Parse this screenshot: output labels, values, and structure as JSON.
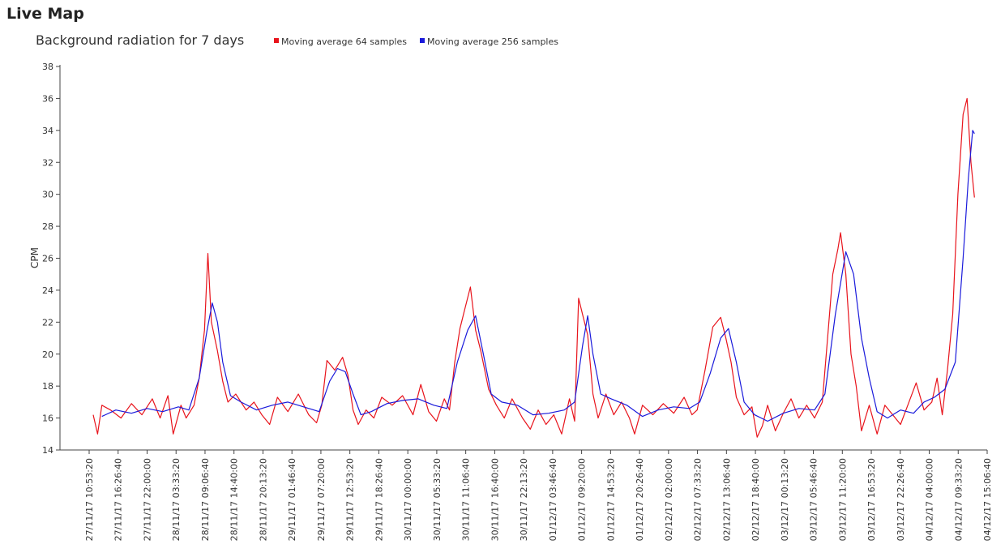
{
  "page": {
    "title": "Live Map"
  },
  "chart_data": {
    "type": "line",
    "title": "Background radiation for 7 days",
    "xlabel": "",
    "ylabel": "CPM",
    "ylim": [
      14,
      38
    ],
    "yticks": [
      14,
      16,
      18,
      20,
      22,
      24,
      26,
      28,
      30,
      32,
      34,
      36,
      38
    ],
    "legend_position": "top",
    "grid": false,
    "x_tick_labels": [
      "27/11/17 10:53:20",
      "27/11/17 16:26:40",
      "27/11/17 22:00:00",
      "28/11/17 03:33:20",
      "28/11/17 09:06:40",
      "28/11/17 14:40:00",
      "28/11/17 20:13:20",
      "29/11/17 01:46:40",
      "29/11/17 07:20:00",
      "29/11/17 12:53:20",
      "29/11/17 18:26:40",
      "30/11/17 00:00:00",
      "30/11/17 05:33:20",
      "30/11/17 11:06:40",
      "30/11/17 16:40:00",
      "30/11/17 22:13:20",
      "01/12/17 03:46:40",
      "01/12/17 09:20:00",
      "01/12/17 14:53:20",
      "01/12/17 20:26:40",
      "02/12/17 02:00:00",
      "02/12/17 07:33:20",
      "02/12/17 13:06:40",
      "02/12/17 18:40:00",
      "03/12/17 00:13:20",
      "03/12/17 05:46:40",
      "03/12/17 11:20:00",
      "03/12/17 16:53:20",
      "03/12/17 22:26:40",
      "04/12/17 04:00:00",
      "04/12/17 09:33:20",
      "04/12/17 15:06:40"
    ],
    "series": [
      {
        "name": "Moving average 64 samples",
        "color": "#e8141c",
        "points": [
          [
            "27/11/17 11:40",
            16.2
          ],
          [
            "27/11/17 12:30",
            15.0
          ],
          [
            "27/11/17 13:20",
            16.8
          ],
          [
            "27/11/17 15:00",
            16.5
          ],
          [
            "27/11/17 17:00",
            16.0
          ],
          [
            "27/11/17 19:00",
            16.9
          ],
          [
            "27/11/17 21:00",
            16.2
          ],
          [
            "27/11/17 23:00",
            17.2
          ],
          [
            "28/11/17 00:30",
            16.0
          ],
          [
            "28/11/17 02:00",
            17.4
          ],
          [
            "28/11/17 03:00",
            15.0
          ],
          [
            "28/11/17 04:30",
            16.8
          ],
          [
            "28/11/17 05:30",
            16.0
          ],
          [
            "28/11/17 07:00",
            16.8
          ],
          [
            "28/11/17 08:00",
            18.5
          ],
          [
            "28/11/17 09:00",
            21.5
          ],
          [
            "28/11/17 09:40",
            26.3
          ],
          [
            "28/11/17 10:20",
            22.0
          ],
          [
            "28/11/17 11:30",
            20.2
          ],
          [
            "28/11/17 12:30",
            18.3
          ],
          [
            "28/11/17 13:30",
            17.0
          ],
          [
            "28/11/17 15:00",
            17.5
          ],
          [
            "28/11/17 17:00",
            16.5
          ],
          [
            "28/11/17 18:30",
            17.0
          ],
          [
            "28/11/17 20:00",
            16.2
          ],
          [
            "28/11/17 21:30",
            15.6
          ],
          [
            "28/11/17 23:00",
            17.3
          ],
          [
            "29/11/17 01:00",
            16.4
          ],
          [
            "29/11/17 03:00",
            17.5
          ],
          [
            "29/11/17 05:00",
            16.2
          ],
          [
            "29/11/17 06:30",
            15.7
          ],
          [
            "29/11/17 07:30",
            16.8
          ],
          [
            "29/11/17 08:30",
            19.6
          ],
          [
            "29/11/17 10:00",
            19.0
          ],
          [
            "29/11/17 11:30",
            19.8
          ],
          [
            "29/11/17 12:30",
            18.7
          ],
          [
            "29/11/17 13:30",
            16.5
          ],
          [
            "29/11/17 14:30",
            15.6
          ],
          [
            "29/11/17 16:00",
            16.5
          ],
          [
            "29/11/17 17:30",
            16.0
          ],
          [
            "29/11/17 19:00",
            17.3
          ],
          [
            "29/11/17 21:00",
            16.8
          ],
          [
            "29/11/17 23:00",
            17.4
          ],
          [
            "30/11/17 01:00",
            16.2
          ],
          [
            "30/11/17 02:30",
            18.1
          ],
          [
            "30/11/17 04:00",
            16.4
          ],
          [
            "30/11/17 05:30",
            15.8
          ],
          [
            "30/11/17 07:00",
            17.2
          ],
          [
            "30/11/17 08:00",
            16.5
          ],
          [
            "30/11/17 09:00",
            19.5
          ],
          [
            "30/11/17 10:00",
            21.6
          ],
          [
            "30/11/17 11:00",
            22.9
          ],
          [
            "30/11/17 12:00",
            24.2
          ],
          [
            "30/11/17 13:00",
            21.5
          ],
          [
            "30/11/17 14:00",
            20.2
          ],
          [
            "30/11/17 15:30",
            17.8
          ],
          [
            "30/11/17 17:00",
            16.8
          ],
          [
            "30/11/17 18:30",
            16.0
          ],
          [
            "30/11/17 20:00",
            17.2
          ],
          [
            "30/11/17 22:00",
            16.0
          ],
          [
            "30/11/17 23:30",
            15.3
          ],
          [
            "01/12/17 01:00",
            16.5
          ],
          [
            "01/12/17 02:30",
            15.6
          ],
          [
            "01/12/17 04:00",
            16.2
          ],
          [
            "01/12/17 05:30",
            15.0
          ],
          [
            "01/12/17 07:00",
            17.2
          ],
          [
            "01/12/17 08:00",
            15.8
          ],
          [
            "01/12/17 08:45",
            23.5
          ],
          [
            "01/12/17 09:30",
            22.5
          ],
          [
            "01/12/17 10:30",
            21.2
          ],
          [
            "01/12/17 11:30",
            17.5
          ],
          [
            "01/12/17 12:30",
            16.0
          ],
          [
            "01/12/17 14:00",
            17.5
          ],
          [
            "01/12/17 15:30",
            16.2
          ],
          [
            "01/12/17 17:00",
            17.0
          ],
          [
            "01/12/17 18:30",
            16.0
          ],
          [
            "01/12/17 19:30",
            15.0
          ],
          [
            "01/12/17 21:00",
            16.8
          ],
          [
            "01/12/17 23:00",
            16.2
          ],
          [
            "02/12/17 01:00",
            16.9
          ],
          [
            "02/12/17 03:00",
            16.3
          ],
          [
            "02/12/17 05:00",
            17.3
          ],
          [
            "02/12/17 06:30",
            16.2
          ],
          [
            "02/12/17 07:30",
            16.5
          ],
          [
            "02/12/17 09:00",
            19.0
          ],
          [
            "02/12/17 10:30",
            21.7
          ],
          [
            "02/12/17 12:00",
            22.3
          ],
          [
            "02/12/17 13:00",
            21.0
          ],
          [
            "02/12/17 14:00",
            19.5
          ],
          [
            "02/12/17 15:00",
            17.3
          ],
          [
            "02/12/17 16:30",
            16.2
          ],
          [
            "02/12/17 18:00",
            16.7
          ],
          [
            "02/12/17 19:00",
            14.8
          ],
          [
            "02/12/17 20:00",
            15.5
          ],
          [
            "02/12/17 21:00",
            16.8
          ],
          [
            "02/12/17 22:30",
            15.2
          ],
          [
            "03/12/17 00:00",
            16.3
          ],
          [
            "03/12/17 01:30",
            17.2
          ],
          [
            "03/12/17 03:00",
            16.0
          ],
          [
            "03/12/17 04:30",
            16.8
          ],
          [
            "03/12/17 06:00",
            16.0
          ],
          [
            "03/12/17 07:30",
            17.0
          ],
          [
            "03/12/17 08:30",
            21.0
          ],
          [
            "03/12/17 09:30",
            25.0
          ],
          [
            "03/12/17 10:30",
            26.6
          ],
          [
            "03/12/17 11:00",
            27.6
          ],
          [
            "03/12/17 12:00",
            25.0
          ],
          [
            "03/12/17 13:00",
            20.0
          ],
          [
            "03/12/17 14:00",
            18.0
          ],
          [
            "03/12/17 15:00",
            15.2
          ],
          [
            "03/12/17 16:30",
            16.8
          ],
          [
            "03/12/17 18:00",
            15.0
          ],
          [
            "03/12/17 19:30",
            16.8
          ],
          [
            "03/12/17 21:00",
            16.2
          ],
          [
            "03/12/17 22:30",
            15.6
          ],
          [
            "04/12/17 00:00",
            16.9
          ],
          [
            "04/12/17 01:30",
            18.2
          ],
          [
            "04/12/17 03:00",
            16.5
          ],
          [
            "04/12/17 04:30",
            17.0
          ],
          [
            "04/12/17 05:30",
            18.5
          ],
          [
            "04/12/17 06:30",
            16.2
          ],
          [
            "04/12/17 07:30",
            19.0
          ],
          [
            "04/12/17 08:30",
            22.5
          ],
          [
            "04/12/17 09:30",
            30.0
          ],
          [
            "04/12/17 10:30",
            35.0
          ],
          [
            "04/12/17 11:15",
            36.0
          ],
          [
            "04/12/17 12:00",
            32.0
          ],
          [
            "04/12/17 12:40",
            29.8
          ]
        ]
      },
      {
        "name": "Moving average 256 samples",
        "color": "#1a1adb",
        "points": [
          [
            "27/11/17 13:20",
            16.1
          ],
          [
            "27/11/17 16:00",
            16.5
          ],
          [
            "27/11/17 19:00",
            16.3
          ],
          [
            "27/11/17 22:00",
            16.6
          ],
          [
            "28/11/17 01:00",
            16.4
          ],
          [
            "28/11/17 04:00",
            16.7
          ],
          [
            "28/11/17 06:00",
            16.5
          ],
          [
            "28/11/17 08:00",
            18.5
          ],
          [
            "28/11/17 09:30",
            21.5
          ],
          [
            "28/11/17 10:30",
            23.2
          ],
          [
            "28/11/17 11:30",
            22.0
          ],
          [
            "28/11/17 12:30",
            19.5
          ],
          [
            "28/11/17 14:00",
            17.4
          ],
          [
            "28/11/17 16:00",
            17.0
          ],
          [
            "28/11/17 19:00",
            16.5
          ],
          [
            "28/11/17 22:00",
            16.8
          ],
          [
            "29/11/17 01:00",
            17.0
          ],
          [
            "29/11/17 04:00",
            16.7
          ],
          [
            "29/11/17 07:00",
            16.4
          ],
          [
            "29/11/17 09:00",
            18.3
          ],
          [
            "29/11/17 10:30",
            19.1
          ],
          [
            "29/11/17 12:00",
            18.9
          ],
          [
            "29/11/17 13:30",
            17.5
          ],
          [
            "29/11/17 15:00",
            16.2
          ],
          [
            "29/11/17 17:00",
            16.4
          ],
          [
            "29/11/17 20:00",
            16.9
          ],
          [
            "29/11/17 23:00",
            17.1
          ],
          [
            "30/11/17 02:00",
            17.2
          ],
          [
            "30/11/17 05:00",
            16.8
          ],
          [
            "30/11/17 07:30",
            16.6
          ],
          [
            "30/11/17 09:30",
            19.5
          ],
          [
            "30/11/17 11:30",
            21.5
          ],
          [
            "30/11/17 13:00",
            22.4
          ],
          [
            "30/11/17 14:30",
            20.0
          ],
          [
            "30/11/17 16:00",
            17.5
          ],
          [
            "30/11/17 18:00",
            17.0
          ],
          [
            "30/11/17 21:00",
            16.8
          ],
          [
            "01/12/17 00:00",
            16.2
          ],
          [
            "01/12/17 03:00",
            16.3
          ],
          [
            "01/12/17 06:00",
            16.5
          ],
          [
            "01/12/17 08:00",
            17.0
          ],
          [
            "01/12/17 09:30",
            20.5
          ],
          [
            "01/12/17 10:30",
            22.4
          ],
          [
            "01/12/17 11:30",
            20.0
          ],
          [
            "01/12/17 13:00",
            17.5
          ],
          [
            "01/12/17 15:00",
            17.2
          ],
          [
            "01/12/17 18:00",
            16.8
          ],
          [
            "01/12/17 21:00",
            16.1
          ],
          [
            "02/12/17 00:00",
            16.5
          ],
          [
            "02/12/17 03:00",
            16.7
          ],
          [
            "02/12/17 06:00",
            16.6
          ],
          [
            "02/12/17 08:00",
            17.0
          ],
          [
            "02/12/17 10:00",
            18.8
          ],
          [
            "02/12/17 12:00",
            21.0
          ],
          [
            "02/12/17 13:30",
            21.6
          ],
          [
            "02/12/17 15:00",
            19.5
          ],
          [
            "02/12/17 16:30",
            17.0
          ],
          [
            "02/12/17 18:30",
            16.2
          ],
          [
            "02/12/17 21:00",
            15.8
          ],
          [
            "03/12/17 00:00",
            16.3
          ],
          [
            "03/12/17 03:00",
            16.6
          ],
          [
            "03/12/17 06:00",
            16.5
          ],
          [
            "03/12/17 08:00",
            17.5
          ],
          [
            "03/12/17 10:00",
            22.5
          ],
          [
            "03/12/17 12:00",
            26.4
          ],
          [
            "03/12/17 13:30",
            25.0
          ],
          [
            "03/12/17 15:00",
            21.0
          ],
          [
            "03/12/17 16:30",
            18.5
          ],
          [
            "03/12/17 18:00",
            16.4
          ],
          [
            "03/12/17 20:00",
            16.0
          ],
          [
            "03/12/17 22:30",
            16.5
          ],
          [
            "04/12/17 01:00",
            16.3
          ],
          [
            "04/12/17 03:00",
            17.0
          ],
          [
            "04/12/17 05:00",
            17.3
          ],
          [
            "04/12/17 07:00",
            17.8
          ],
          [
            "04/12/17 09:00",
            19.5
          ],
          [
            "04/12/17 10:30",
            26.0
          ],
          [
            "04/12/17 11:30",
            31.0
          ],
          [
            "04/12/17 12:20",
            34.0
          ],
          [
            "04/12/17 12:40",
            33.8
          ]
        ]
      }
    ]
  }
}
